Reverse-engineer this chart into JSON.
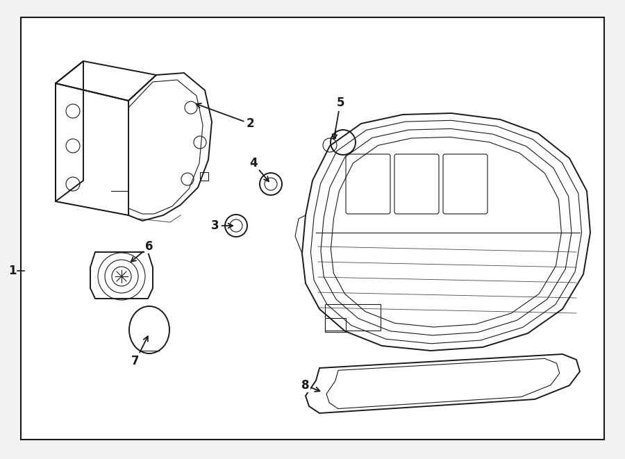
{
  "bg_color": "#f2f2f2",
  "inner_bg": "#ffffff",
  "line_color": "#1a1a1a",
  "label_color": "#000000",
  "lw_main": 1.4,
  "lw_thin": 0.8,
  "lw_border": 1.5
}
